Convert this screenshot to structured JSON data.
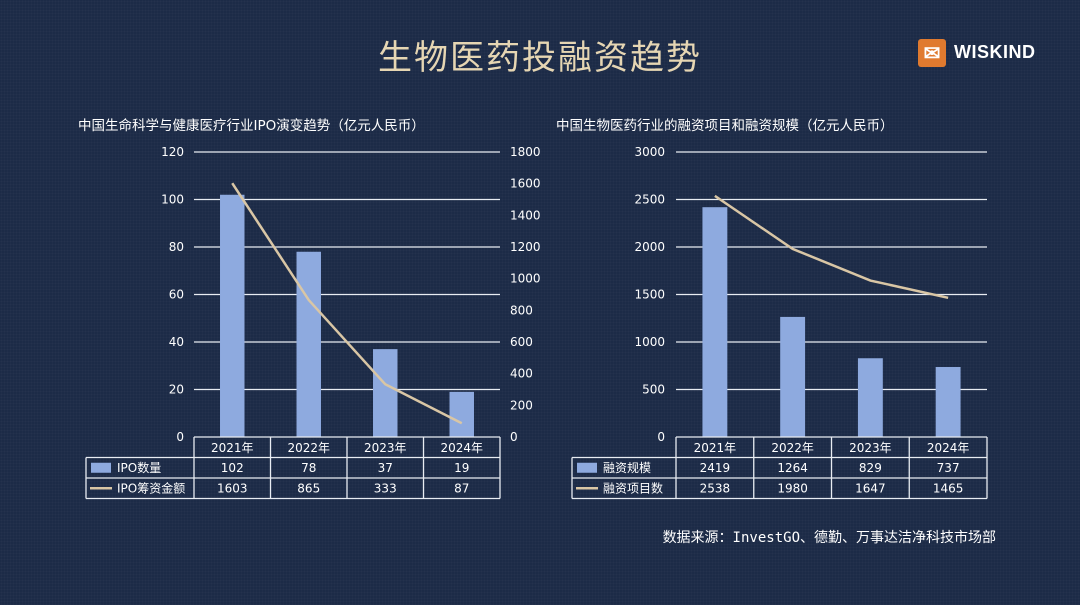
{
  "page": {
    "title": "生物医药投融资趋势",
    "logo_text": "WISKIND",
    "logo_mark": "✉",
    "source": "数据来源：InvestGO、德勤、万事达洁净科技市场部"
  },
  "chart_data": [
    {
      "type": "bar",
      "title": "中国生命科学与健康医疗行业IPO演变趋势（亿元人民币）",
      "categories": [
        "2021年",
        "2022年",
        "2023年",
        "2024年"
      ],
      "series": [
        {
          "name": "IPO数量",
          "type": "bar",
          "axis": "left",
          "values": [
            102,
            78,
            37,
            19
          ],
          "color": "#8eaadf"
        },
        {
          "name": "IPO筹资金额",
          "type": "line",
          "axis": "right",
          "values": [
            1603,
            865,
            333,
            87
          ],
          "color": "#d9c6a5"
        }
      ],
      "y_left": {
        "min": 0,
        "max": 120,
        "ticks": [
          0,
          20,
          40,
          60,
          80,
          100,
          120
        ]
      },
      "y_right": {
        "min": 0,
        "max": 1800,
        "ticks": [
          0,
          200,
          400,
          600,
          800,
          1000,
          1200,
          1400,
          1600,
          1800
        ]
      },
      "grid": true,
      "legend": "data-table"
    },
    {
      "type": "bar",
      "title": "中国生物医药行业的融资项目和融资规模（亿元人民币）",
      "categories": [
        "2021年",
        "2022年",
        "2023年",
        "2024年"
      ],
      "series": [
        {
          "name": "融资规模",
          "type": "bar",
          "axis": "left",
          "values": [
            2419,
            1264,
            829,
            737
          ],
          "color": "#8eaadf"
        },
        {
          "name": "融资项目数",
          "type": "line",
          "axis": "left",
          "values": [
            2538,
            1980,
            1647,
            1465
          ],
          "color": "#d9c6a5"
        }
      ],
      "y_left": {
        "min": 0,
        "max": 3000,
        "ticks": [
          0,
          500,
          1000,
          1500,
          2000,
          2500,
          3000
        ]
      },
      "grid": true,
      "legend": "data-table"
    }
  ]
}
